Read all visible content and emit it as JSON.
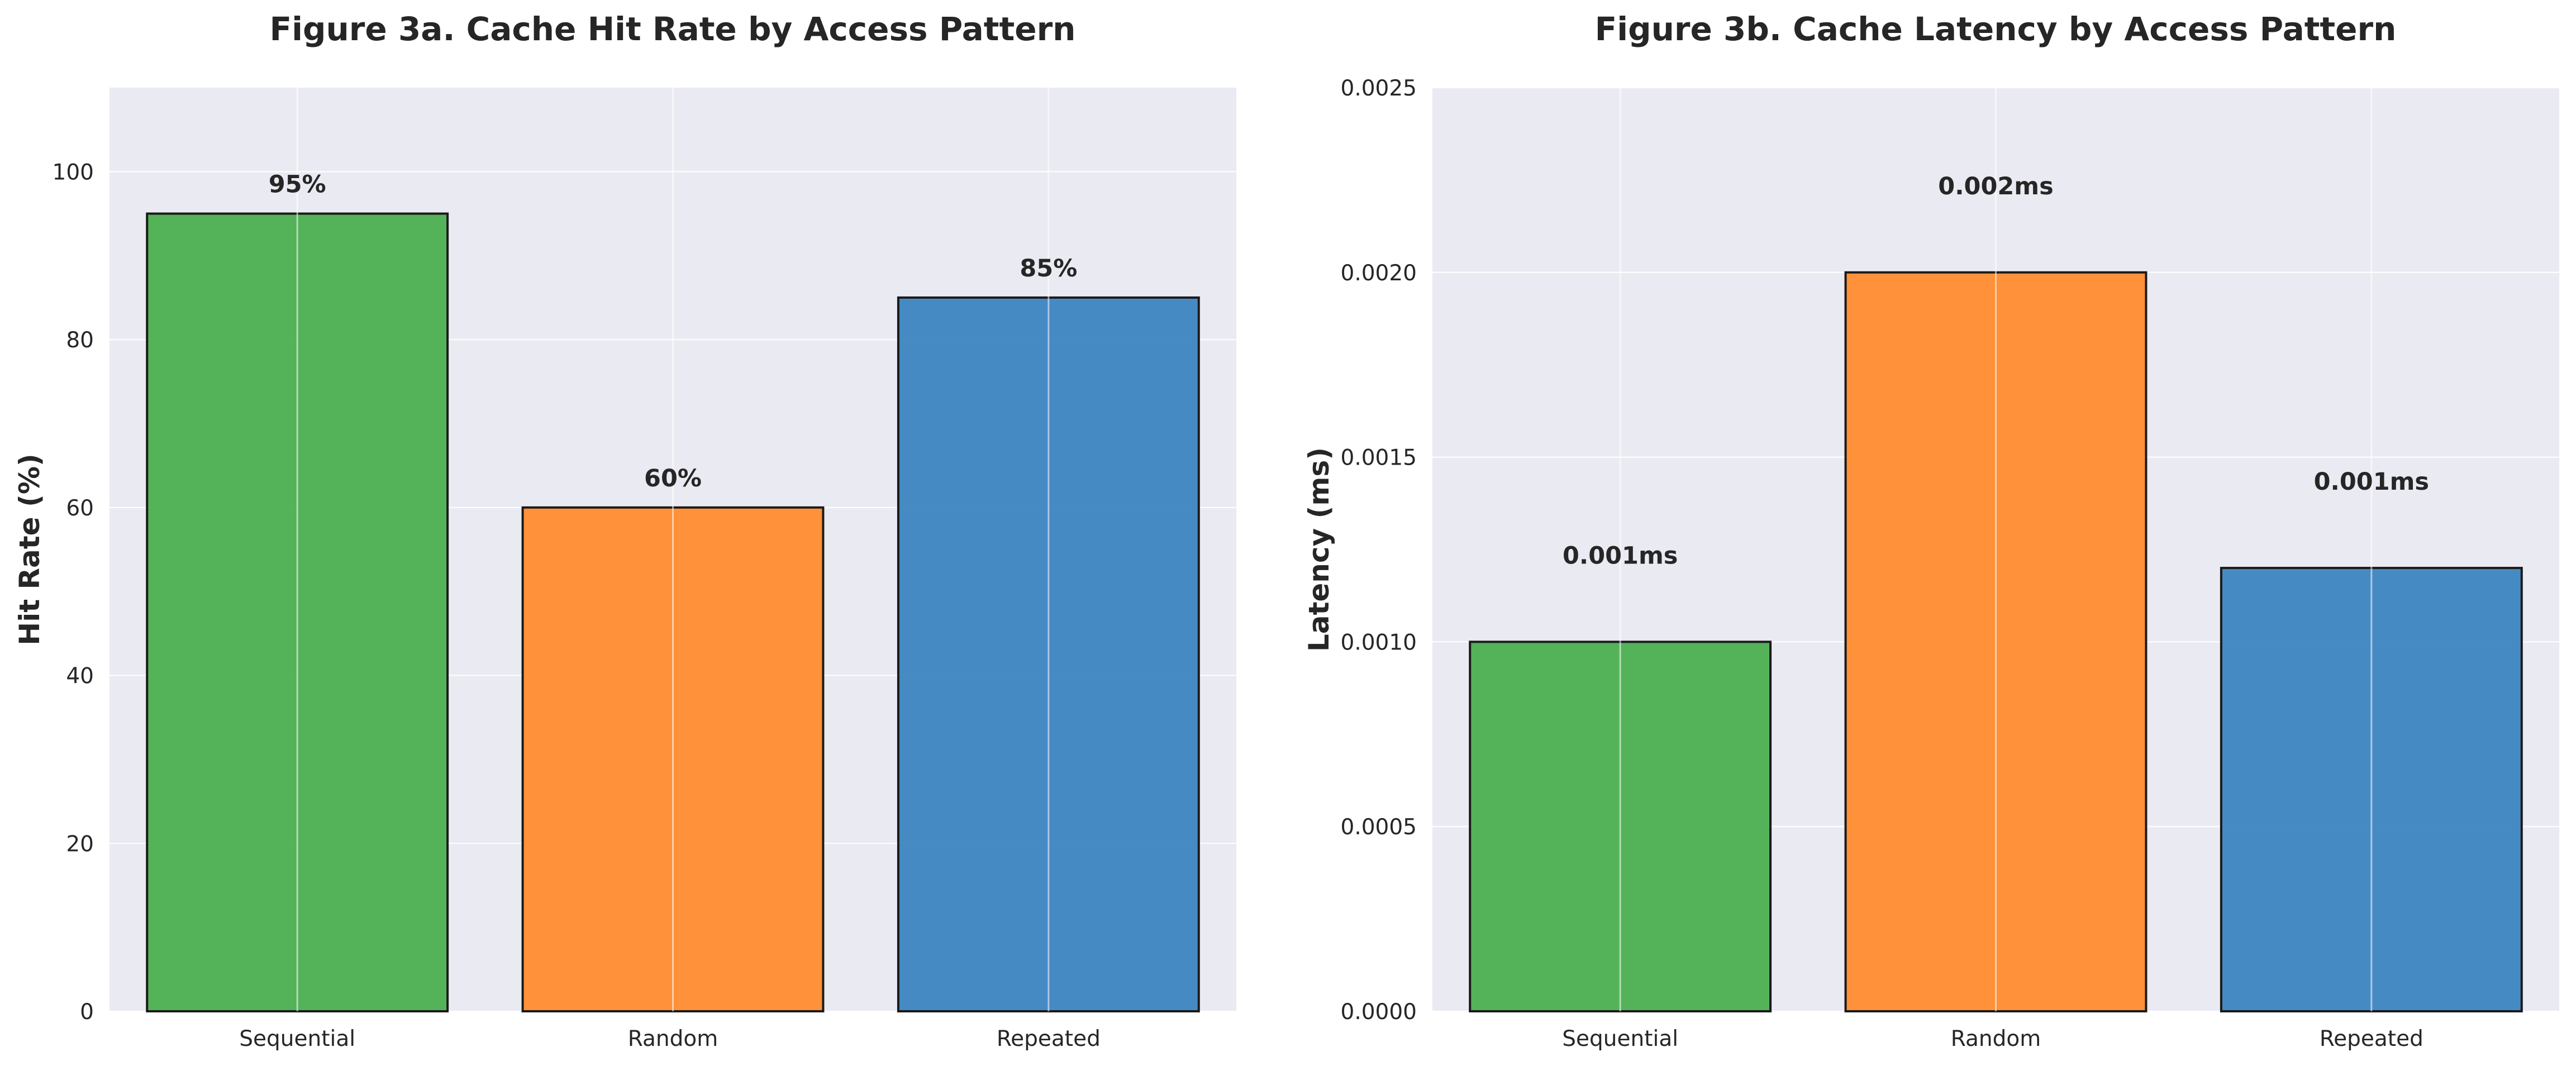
{
  "chart_data": [
    {
      "type": "bar",
      "title": "Figure 3a. Cache Hit Rate by Access Pattern",
      "xlabel": "",
      "ylabel": "Hit Rate (%)",
      "categories": [
        "Sequential",
        "Random",
        "Repeated"
      ],
      "values": [
        95,
        60,
        85
      ],
      "data_labels": [
        "95%",
        "60%",
        "85%"
      ],
      "colors": [
        "#4caf50",
        "#ff8c2e",
        "#3d85c0"
      ],
      "ylim": [
        0,
        110
      ],
      "yticks": [
        0,
        20,
        40,
        60,
        80,
        100
      ],
      "ytick_labels": [
        "0",
        "20",
        "40",
        "60",
        "80",
        "100"
      ],
      "grid": true,
      "background": "#eaeaf2"
    },
    {
      "type": "bar",
      "title": "Figure 3b. Cache Latency by Access Pattern",
      "xlabel": "",
      "ylabel": "Latency (ms)",
      "categories": [
        "Sequential",
        "Random",
        "Repeated"
      ],
      "values": [
        0.001,
        0.002,
        0.0012
      ],
      "data_labels": [
        "0.001ms",
        "0.002ms",
        "0.001ms"
      ],
      "colors": [
        "#4caf50",
        "#ff8c2e",
        "#3d85c0"
      ],
      "ylim": [
        0,
        0.0025
      ],
      "yticks": [
        0,
        0.0005,
        0.001,
        0.0015,
        0.002,
        0.0025
      ],
      "ytick_labels": [
        "0.0000",
        "0.0005",
        "0.0010",
        "0.0015",
        "0.0020",
        "0.0025"
      ],
      "grid": true,
      "background": "#eaeaf2"
    }
  ]
}
